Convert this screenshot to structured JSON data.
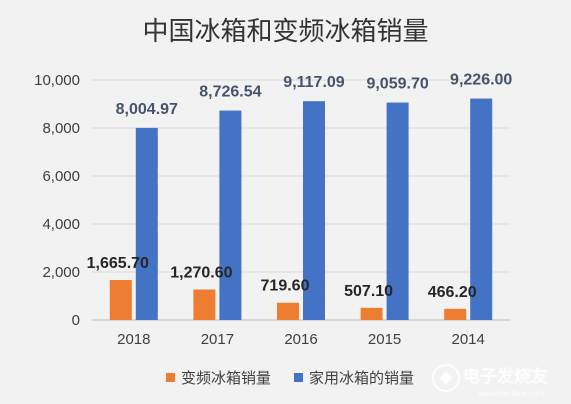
{
  "chart_data": {
    "type": "bar",
    "title": "中国冰箱和变频冰箱销量",
    "xlabel": "",
    "ylabel": "",
    "categories": [
      "2018",
      "2017",
      "2016",
      "2015",
      "2014"
    ],
    "ylim": [
      0,
      10000
    ],
    "yticks": [
      "0",
      "2,000",
      "4,000",
      "6,000",
      "8,000",
      "10,000"
    ],
    "ytick_values": [
      0,
      2000,
      4000,
      6000,
      8000,
      10000
    ],
    "grid": true,
    "legend_position": "bottom",
    "series": [
      {
        "name": "变频冰箱销量",
        "color": "#ed7d31",
        "values": [
          1665.7,
          1270.6,
          719.6,
          507.1,
          466.2
        ],
        "labels": [
          "1,665.70",
          "1,270.60",
          "719.60",
          "507.10",
          "466.20"
        ]
      },
      {
        "name": "家用冰箱的销量",
        "color": "#4472c4",
        "values": [
          8004.97,
          8726.54,
          9117.09,
          9059.7,
          9226.0
        ],
        "labels": [
          "8,004.97",
          "8,726.54",
          "9,117.09",
          "9,059.70",
          "9,226.00"
        ]
      }
    ]
  },
  "watermark": {
    "text": "电子发烧友",
    "subtext": "www.elecfans.com",
    "icon": "elecfans-logo-icon"
  }
}
